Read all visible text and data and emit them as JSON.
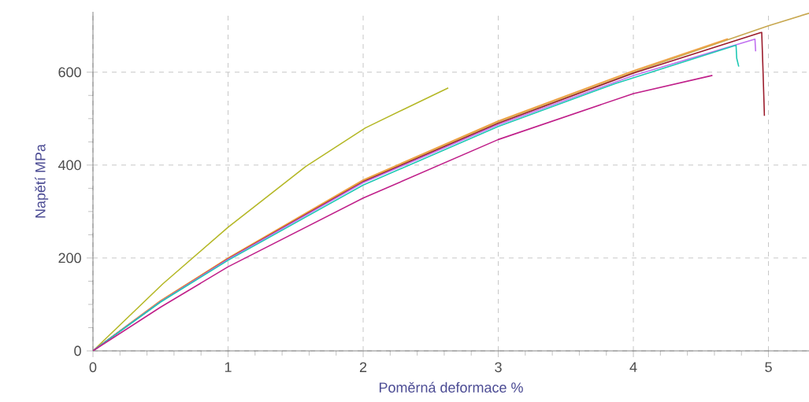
{
  "chart_data": {
    "type": "line",
    "xlabel": "Poměrná deformace     %",
    "ylabel": "Napětí   MPa",
    "xlim": [
      0,
      5.3
    ],
    "ylim": [
      0,
      730
    ],
    "xticks": [
      0,
      1,
      2,
      3,
      4,
      5
    ],
    "yticks": [
      0,
      200,
      400,
      600
    ],
    "grid": true,
    "line_style": "solid",
    "series": [
      {
        "color": "#b5b827",
        "x": [
          0,
          0.516,
          1,
          1.575,
          2.016,
          2.3,
          2.63
        ],
        "values": [
          0,
          144,
          266,
          397,
          480,
          520,
          566
        ]
      },
      {
        "color": "#c8a850",
        "x": [
          0,
          0.5,
          1,
          2,
          3,
          4,
          5,
          5.3
        ],
        "values": [
          0,
          107,
          199,
          366,
          493,
          600,
          700,
          727
        ]
      },
      {
        "color": "#f0a040",
        "x": [
          0,
          0.5,
          1,
          2,
          3,
          4,
          4.7
        ],
        "values": [
          0,
          108,
          200,
          368,
          495,
          603,
          672
        ]
      },
      {
        "color": "#9b1c2c",
        "x": [
          0,
          0.5,
          1,
          2,
          3,
          4,
          4.95,
          4.96,
          4.97
        ],
        "values": [
          0,
          106,
          198,
          364,
          490,
          598,
          686,
          600,
          506
        ]
      },
      {
        "color": "#c070f0",
        "x": [
          0,
          0.5,
          1,
          2,
          3,
          4,
          4.9,
          4.905
        ],
        "values": [
          0,
          106,
          197,
          362,
          487,
          593,
          671,
          645
        ]
      },
      {
        "color": "#1fc8b4",
        "x": [
          0,
          0.5,
          1,
          2,
          3,
          3.87,
          4.76,
          4.765,
          4.78
        ],
        "values": [
          0,
          105,
          195,
          357,
          483,
          576,
          658,
          630,
          612
        ]
      },
      {
        "color": "#c0208a",
        "x": [
          0,
          0.5,
          1,
          2,
          3,
          4,
          4.585
        ],
        "values": [
          0,
          94,
          181,
          329,
          455,
          554,
          593
        ]
      }
    ]
  }
}
